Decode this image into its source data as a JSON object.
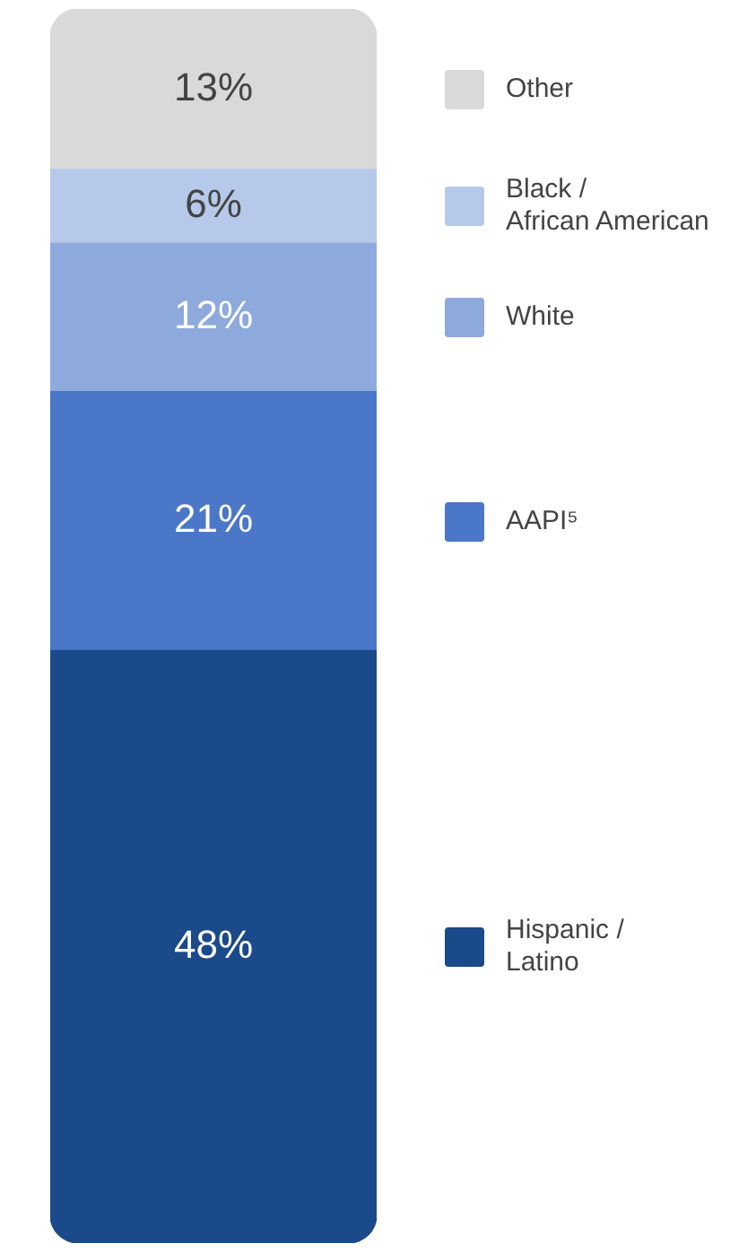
{
  "chart_data": {
    "type": "bar",
    "stacked": true,
    "categories": [
      null
    ],
    "legend": "right",
    "tick_labels": false,
    "series": [
      {
        "name": "Hispanic / Latino",
        "color": "#1b4a8a",
        "values": [
          48
        ],
        "value_labels": [
          "48%"
        ]
      },
      {
        "name": "AAPI⁵",
        "color": "#4a77c8",
        "values": [
          21
        ],
        "value_labels": [
          "21%"
        ]
      },
      {
        "name": "White",
        "color": "#8eaadc",
        "values": [
          12
        ],
        "value_labels": [
          "12%"
        ]
      },
      {
        "name": "Black / African American",
        "color": "#b6c9ea",
        "values": [
          6
        ],
        "value_labels": [
          "6%"
        ]
      },
      {
        "name": "Other",
        "color": "#d9d9d9",
        "values": [
          13
        ],
        "value_labels": [
          "13%"
        ]
      }
    ]
  }
}
